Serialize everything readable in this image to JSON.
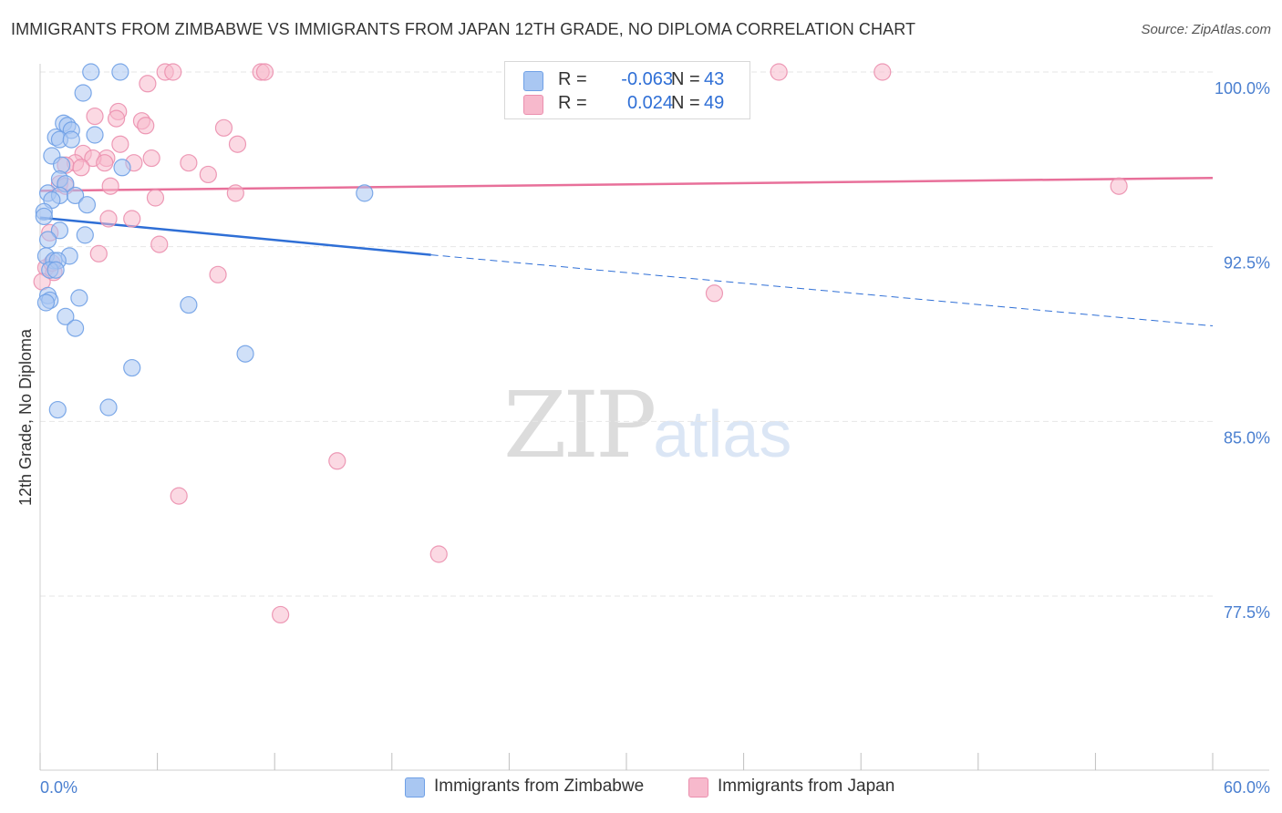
{
  "header": {
    "title": "IMMIGRANTS FROM ZIMBABWE VS IMMIGRANTS FROM JAPAN 12TH GRADE, NO DIPLOMA CORRELATION CHART",
    "source": "Source: ZipAtlas.com"
  },
  "legend": {
    "r_label": "R =",
    "n_label": "N =",
    "rows": [
      {
        "r": "-0.063",
        "n": "43",
        "color": "#a9c7f2"
      },
      {
        "r": "0.024",
        "n": "49",
        "color": "#f7b9cc"
      }
    ]
  },
  "bottom_legend": {
    "series1": "Immigrants from Zimbabwe",
    "series2": "Immigrants from Japan"
  },
  "watermark": {
    "part1": "ZIP",
    "part2": "atlas"
  },
  "chart_data": {
    "type": "scatter",
    "title": "IMMIGRANTS FROM ZIMBABWE VS IMMIGRANTS FROM JAPAN 12TH GRADE, NO DIPLOMA CORRELATION CHART",
    "ylabel": "12th Grade, No Diploma",
    "xlabel": "",
    "xlim": [
      0,
      60
    ],
    "ylim": [
      71.5,
      100.8
    ],
    "x_tick_labels": [
      "0.0%",
      "60.0%"
    ],
    "y_ticks": [
      100.0,
      92.5,
      85.0,
      77.5
    ],
    "y_tick_labels": [
      "100.0%",
      "92.5%",
      "85.0%",
      "77.5%"
    ],
    "grid": true,
    "legend_position": "top-center",
    "series": [
      {
        "name": "Immigrants from Zimbabwe",
        "color": "#6fa0e6",
        "fill": "#a9c7f2",
        "trend_color": "#2f6fd6",
        "trend": {
          "x0": 0.0,
          "y0": 93.75,
          "x1": 20.0,
          "y1": 92.15,
          "x_end": 60.0,
          "y_end": 89.1
        },
        "points": [
          [
            2.6,
            100.0
          ],
          [
            4.1,
            100.0
          ],
          [
            2.2,
            99.1
          ],
          [
            1.2,
            97.8
          ],
          [
            1.4,
            97.7
          ],
          [
            1.6,
            97.5
          ],
          [
            2.8,
            97.3
          ],
          [
            0.8,
            97.2
          ],
          [
            1.0,
            97.1
          ],
          [
            1.6,
            97.1
          ],
          [
            0.6,
            96.4
          ],
          [
            1.1,
            96.0
          ],
          [
            4.2,
            95.9
          ],
          [
            1.0,
            95.4
          ],
          [
            1.3,
            95.2
          ],
          [
            0.4,
            94.8
          ],
          [
            1.0,
            94.7
          ],
          [
            1.8,
            94.7
          ],
          [
            0.6,
            94.5
          ],
          [
            2.4,
            94.3
          ],
          [
            0.2,
            94.0
          ],
          [
            16.6,
            94.8
          ],
          [
            0.2,
            93.8
          ],
          [
            1.0,
            93.2
          ],
          [
            2.3,
            93.0
          ],
          [
            0.4,
            92.8
          ],
          [
            0.3,
            92.1
          ],
          [
            1.5,
            92.1
          ],
          [
            0.7,
            91.9
          ],
          [
            0.9,
            91.9
          ],
          [
            0.5,
            91.5
          ],
          [
            0.8,
            91.5
          ],
          [
            0.4,
            90.4
          ],
          [
            0.5,
            90.2
          ],
          [
            2.0,
            90.3
          ],
          [
            0.3,
            90.1
          ],
          [
            7.6,
            90.0
          ],
          [
            1.3,
            89.5
          ],
          [
            1.8,
            89.0
          ],
          [
            10.5,
            87.9
          ],
          [
            4.7,
            87.3
          ],
          [
            3.5,
            85.6
          ],
          [
            0.9,
            85.5
          ]
        ]
      },
      {
        "name": "Immigrants from Japan",
        "color": "#eb8fae",
        "fill": "#f7b9cc",
        "trend_color": "#e8709a",
        "trend": {
          "x0": 0.0,
          "y0": 94.9,
          "x1": 60.0,
          "y1": 95.45
        },
        "points": [
          [
            6.4,
            100.0
          ],
          [
            6.8,
            100.0
          ],
          [
            11.3,
            100.0
          ],
          [
            11.5,
            100.0
          ],
          [
            28.2,
            100.0
          ],
          [
            31.6,
            100.0
          ],
          [
            37.8,
            100.0
          ],
          [
            43.1,
            100.0
          ],
          [
            5.5,
            99.5
          ],
          [
            4.0,
            98.3
          ],
          [
            2.8,
            98.1
          ],
          [
            3.9,
            98.0
          ],
          [
            5.2,
            97.9
          ],
          [
            5.4,
            97.7
          ],
          [
            9.4,
            97.6
          ],
          [
            4.1,
            96.9
          ],
          [
            10.1,
            96.9
          ],
          [
            2.2,
            96.5
          ],
          [
            3.4,
            96.3
          ],
          [
            2.7,
            96.3
          ],
          [
            5.7,
            96.3
          ],
          [
            1.8,
            96.1
          ],
          [
            3.3,
            96.1
          ],
          [
            4.8,
            96.1
          ],
          [
            7.6,
            96.1
          ],
          [
            1.3,
            96.0
          ],
          [
            2.1,
            95.9
          ],
          [
            8.6,
            95.6
          ],
          [
            1.0,
            95.2
          ],
          [
            3.6,
            95.1
          ],
          [
            1.3,
            95.1
          ],
          [
            10.0,
            94.8
          ],
          [
            5.9,
            94.6
          ],
          [
            3.5,
            93.7
          ],
          [
            4.7,
            93.7
          ],
          [
            0.5,
            93.1
          ],
          [
            6.1,
            92.6
          ],
          [
            3.0,
            92.2
          ],
          [
            0.3,
            91.6
          ],
          [
            0.7,
            91.4
          ],
          [
            9.1,
            91.3
          ],
          [
            0.1,
            91.0
          ],
          [
            34.5,
            90.5
          ],
          [
            55.2,
            95.1
          ],
          [
            15.2,
            83.3
          ],
          [
            7.1,
            81.8
          ],
          [
            20.4,
            79.3
          ],
          [
            12.3,
            76.7
          ],
          [
            0.6,
            91.8
          ]
        ]
      }
    ]
  }
}
